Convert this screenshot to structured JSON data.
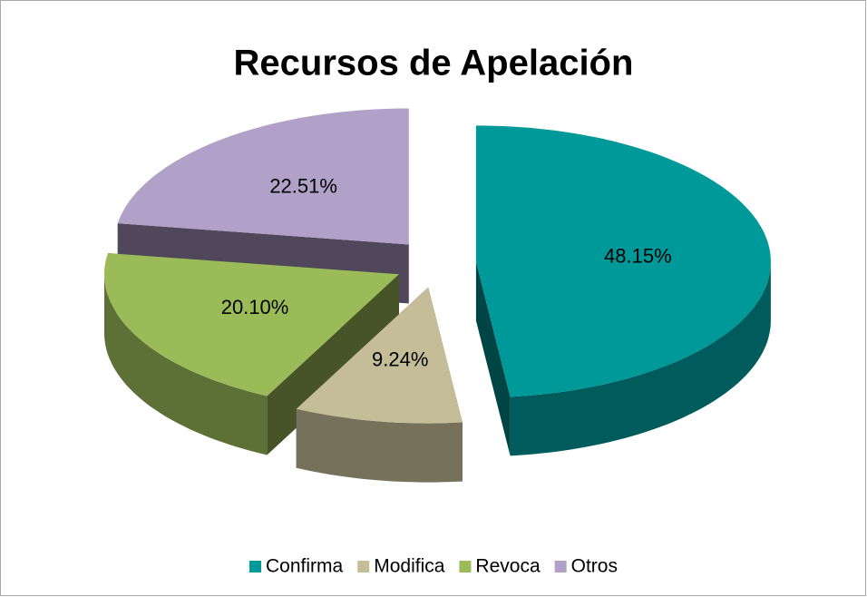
{
  "chart_data": {
    "type": "pie",
    "title": "Recursos de Apelación",
    "categories": [
      "Confirma",
      "Modifica",
      "Revoca",
      "Otros"
    ],
    "values": [
      48.15,
      9.24,
      20.1,
      22.51
    ],
    "value_labels": [
      "48.15%",
      "9.24%",
      "20.10%",
      "22.51%"
    ],
    "colors": [
      "#009999",
      "#c4bd97",
      "#9bbb59",
      "#b1a0c7"
    ],
    "legend": "bottom"
  }
}
